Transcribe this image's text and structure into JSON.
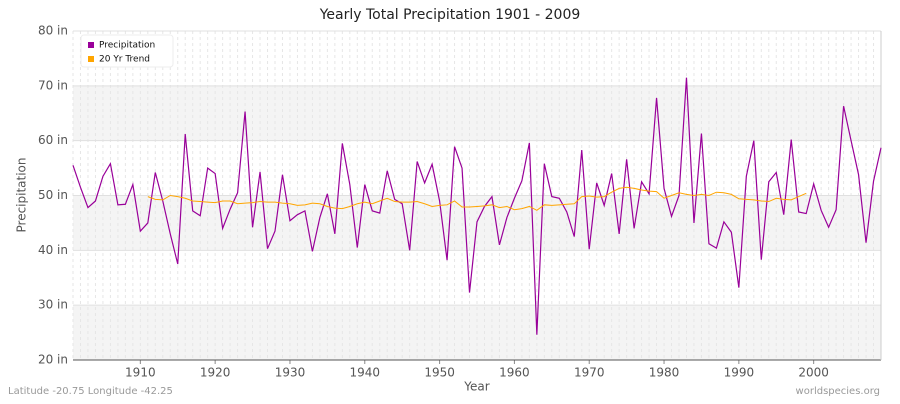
{
  "chart_data": {
    "type": "line",
    "title": "Yearly Total Precipitation 1901 - 2009",
    "xlabel": "Year",
    "ylabel": "Precipitation",
    "footer_left": "Latitude -20.75 Longitude -42.25",
    "footer_right": "worldspecies.org",
    "legend": "upper left",
    "grid": true,
    "x": [
      1901,
      1902,
      1903,
      1904,
      1905,
      1906,
      1907,
      1908,
      1909,
      1910,
      1911,
      1912,
      1913,
      1914,
      1915,
      1916,
      1917,
      1918,
      1919,
      1920,
      1921,
      1922,
      1923,
      1924,
      1925,
      1926,
      1927,
      1928,
      1929,
      1930,
      1931,
      1932,
      1933,
      1934,
      1935,
      1936,
      1937,
      1938,
      1939,
      1940,
      1941,
      1942,
      1943,
      1944,
      1945,
      1946,
      1947,
      1948,
      1949,
      1950,
      1951,
      1952,
      1953,
      1954,
      1955,
      1956,
      1957,
      1958,
      1959,
      1960,
      1961,
      1962,
      1963,
      1964,
      1965,
      1966,
      1967,
      1968,
      1969,
      1970,
      1971,
      1972,
      1973,
      1974,
      1975,
      1976,
      1977,
      1978,
      1979,
      1980,
      1981,
      1982,
      1983,
      1984,
      1985,
      1986,
      1987,
      1988,
      1989,
      1990,
      1991,
      1992,
      1993,
      1994,
      1995,
      1996,
      1997,
      1998,
      1999,
      2000,
      2001,
      2002,
      2003,
      2004,
      2005,
      2006,
      2007,
      2008,
      2009
    ],
    "series": [
      {
        "name": "Precipitation",
        "color": "#990099",
        "values": [
          55.5,
          51.5,
          47.8,
          49,
          53.5,
          55.8,
          48.3,
          48.4,
          52,
          43.5,
          45,
          54.2,
          49,
          43,
          37.5,
          61.2,
          47.2,
          46.3,
          55,
          54,
          44,
          47.5,
          50.5,
          65.3,
          44.2,
          54.3,
          40.3,
          43.5,
          53.8,
          45.4,
          46.5,
          47.2,
          39.8,
          46,
          50.3,
          43,
          59.5,
          52,
          40.5,
          52,
          47.2,
          46.8,
          54.5,
          49.3,
          48.5,
          40,
          56.2,
          52.3,
          55.7,
          49,
          38.2,
          58.9,
          55,
          32.3,
          45.2,
          48,
          49.8,
          41,
          46,
          49.5,
          52.7,
          59.6,
          24.6,
          55.8,
          49.8,
          49.5,
          47,
          42.5,
          58.3,
          40.2,
          52.3,
          48.2,
          54,
          43,
          56.6,
          44,
          52.5,
          50.3,
          67.8,
          51.3,
          46.2,
          50,
          71.5,
          45,
          61.3,
          41.2,
          40.4,
          45.2,
          43.3,
          33.2,
          53.5,
          60,
          38.3,
          52.5,
          54.2,
          46.5,
          60.2,
          47,
          46.7,
          52.1,
          47.3,
          44.2,
          47.4,
          66.3,
          60,
          53.8,
          41.4,
          52.6,
          58.7
        ]
      },
      {
        "name": "20 Yr Trend",
        "color": "#ffa500",
        "values": [
          null,
          null,
          null,
          null,
          null,
          null,
          null,
          null,
          null,
          null,
          49.8,
          49.3,
          49.2,
          50,
          49.8,
          49.5,
          49,
          48.9,
          48.8,
          48.7,
          49,
          49,
          48.5,
          48.6,
          48.7,
          48.9,
          48.8,
          48.8,
          48.6,
          48.5,
          48.2,
          48.3,
          48.6,
          48.5,
          48,
          47.7,
          47.6,
          48,
          48.5,
          48.8,
          48.5,
          49,
          49.5,
          48.9,
          48.8,
          48.8,
          48.9,
          48.5,
          48,
          48.2,
          48.3,
          49,
          47.9,
          47.9,
          48,
          48.1,
          48.3,
          47.8,
          48,
          47.4,
          47.6,
          48,
          47.3,
          48.3,
          48.2,
          48.3,
          48.4,
          48.5,
          49.8,
          49.9,
          49.7,
          49.8,
          50.6,
          51.3,
          51.5,
          51.3,
          51,
          50.8,
          50.7,
          49.5,
          50,
          50.5,
          50.2,
          50,
          50.2,
          50,
          50.6,
          50.5,
          50.2,
          49.4,
          49.3,
          49.2,
          49,
          48.9,
          49.5,
          49.3,
          49.2,
          49.8,
          50.4,
          null,
          null,
          null,
          null,
          null,
          null,
          null,
          null,
          null,
          null
        ]
      }
    ],
    "xlim": [
      1901,
      2009
    ],
    "xticks": [
      1910,
      1920,
      1930,
      1940,
      1950,
      1960,
      1970,
      1980,
      1990,
      2000
    ],
    "ylim": [
      20,
      80
    ],
    "yticks": [
      {
        "value": 20,
        "label": "20 in"
      },
      {
        "value": 30,
        "label": "30 in"
      },
      {
        "value": 40,
        "label": "40 in"
      },
      {
        "value": 50,
        "label": "50 in"
      },
      {
        "value": 60,
        "label": "60 in"
      },
      {
        "value": 70,
        "label": "70 in"
      },
      {
        "value": 80,
        "label": "80 in"
      }
    ]
  }
}
